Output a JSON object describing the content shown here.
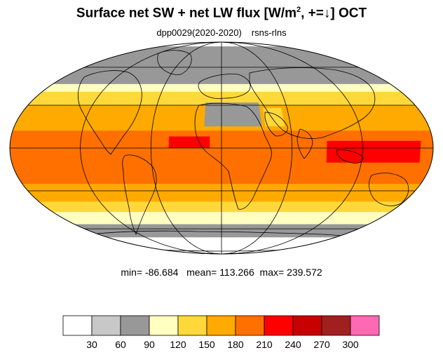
{
  "title": {
    "prefix": "Surface net SW + net LW flux [W/m",
    "exponent": "2",
    "suffix": ", +=↓]  OCT"
  },
  "subtitle": {
    "experiment": "dpp0029(2020-2020)",
    "variable": "rsns-rlns"
  },
  "stats": {
    "min_label": "min=",
    "min": "-86.684",
    "mean_label": "mean=",
    "mean": "113.266",
    "max_label": "max=",
    "max": "239.572"
  },
  "map": {
    "projection": "mollweide",
    "graticule_lon_step_deg": 60,
    "graticule_lat_step_deg": 30,
    "zonal_bands": [
      {
        "lat_from": 90,
        "lat_to": 82,
        "value": 20
      },
      {
        "lat_from": 82,
        "lat_to": 62,
        "value": 75
      },
      {
        "lat_from": 62,
        "lat_to": 46,
        "value": 60
      },
      {
        "lat_from": 46,
        "lat_to": 40,
        "value": 105
      },
      {
        "lat_from": 40,
        "lat_to": 30,
        "value": 140
      },
      {
        "lat_from": 30,
        "lat_to": 12,
        "value": 170
      },
      {
        "lat_from": 12,
        "lat_to": -5,
        "value": 195
      },
      {
        "lat_from": -5,
        "lat_to": -25,
        "value": 200
      },
      {
        "lat_from": -25,
        "lat_to": -38,
        "value": 170
      },
      {
        "lat_from": -38,
        "lat_to": -46,
        "value": 140
      },
      {
        "lat_from": -46,
        "lat_to": -56,
        "value": 110
      },
      {
        "lat_from": -56,
        "lat_to": -68,
        "value": 80
      },
      {
        "lat_from": -68,
        "lat_to": -90,
        "value": 20
      }
    ],
    "features": [
      {
        "name": "sahara",
        "value": 75,
        "lon": [
          -15,
          35
        ],
        "lat": [
          15,
          32
        ]
      },
      {
        "name": "arabia",
        "value": 135,
        "lon": [
          38,
          55
        ],
        "lat": [
          15,
          28
        ]
      },
      {
        "name": "warm-pool",
        "value": 225,
        "lon": [
          90,
          170
        ],
        "lat": [
          -10,
          5
        ]
      },
      {
        "name": "itcz-atlantic",
        "value": 215,
        "lon": [
          -45,
          -10
        ],
        "lat": [
          0,
          8
        ]
      }
    ]
  },
  "colorbar": {
    "colors": [
      "#ffffff",
      "#c8c8c8",
      "#989898",
      "#ffffc0",
      "#ffd83a",
      "#ffaa00",
      "#ff7000",
      "#ff0000",
      "#c80000",
      "#a02020",
      "#ff69b4"
    ],
    "thresholds": [
      30,
      60,
      90,
      120,
      150,
      180,
      210,
      240,
      270,
      300
    ],
    "labels": [
      "30",
      "60",
      "90",
      "120",
      "150",
      "180",
      "210",
      "240",
      "270",
      "300"
    ]
  }
}
